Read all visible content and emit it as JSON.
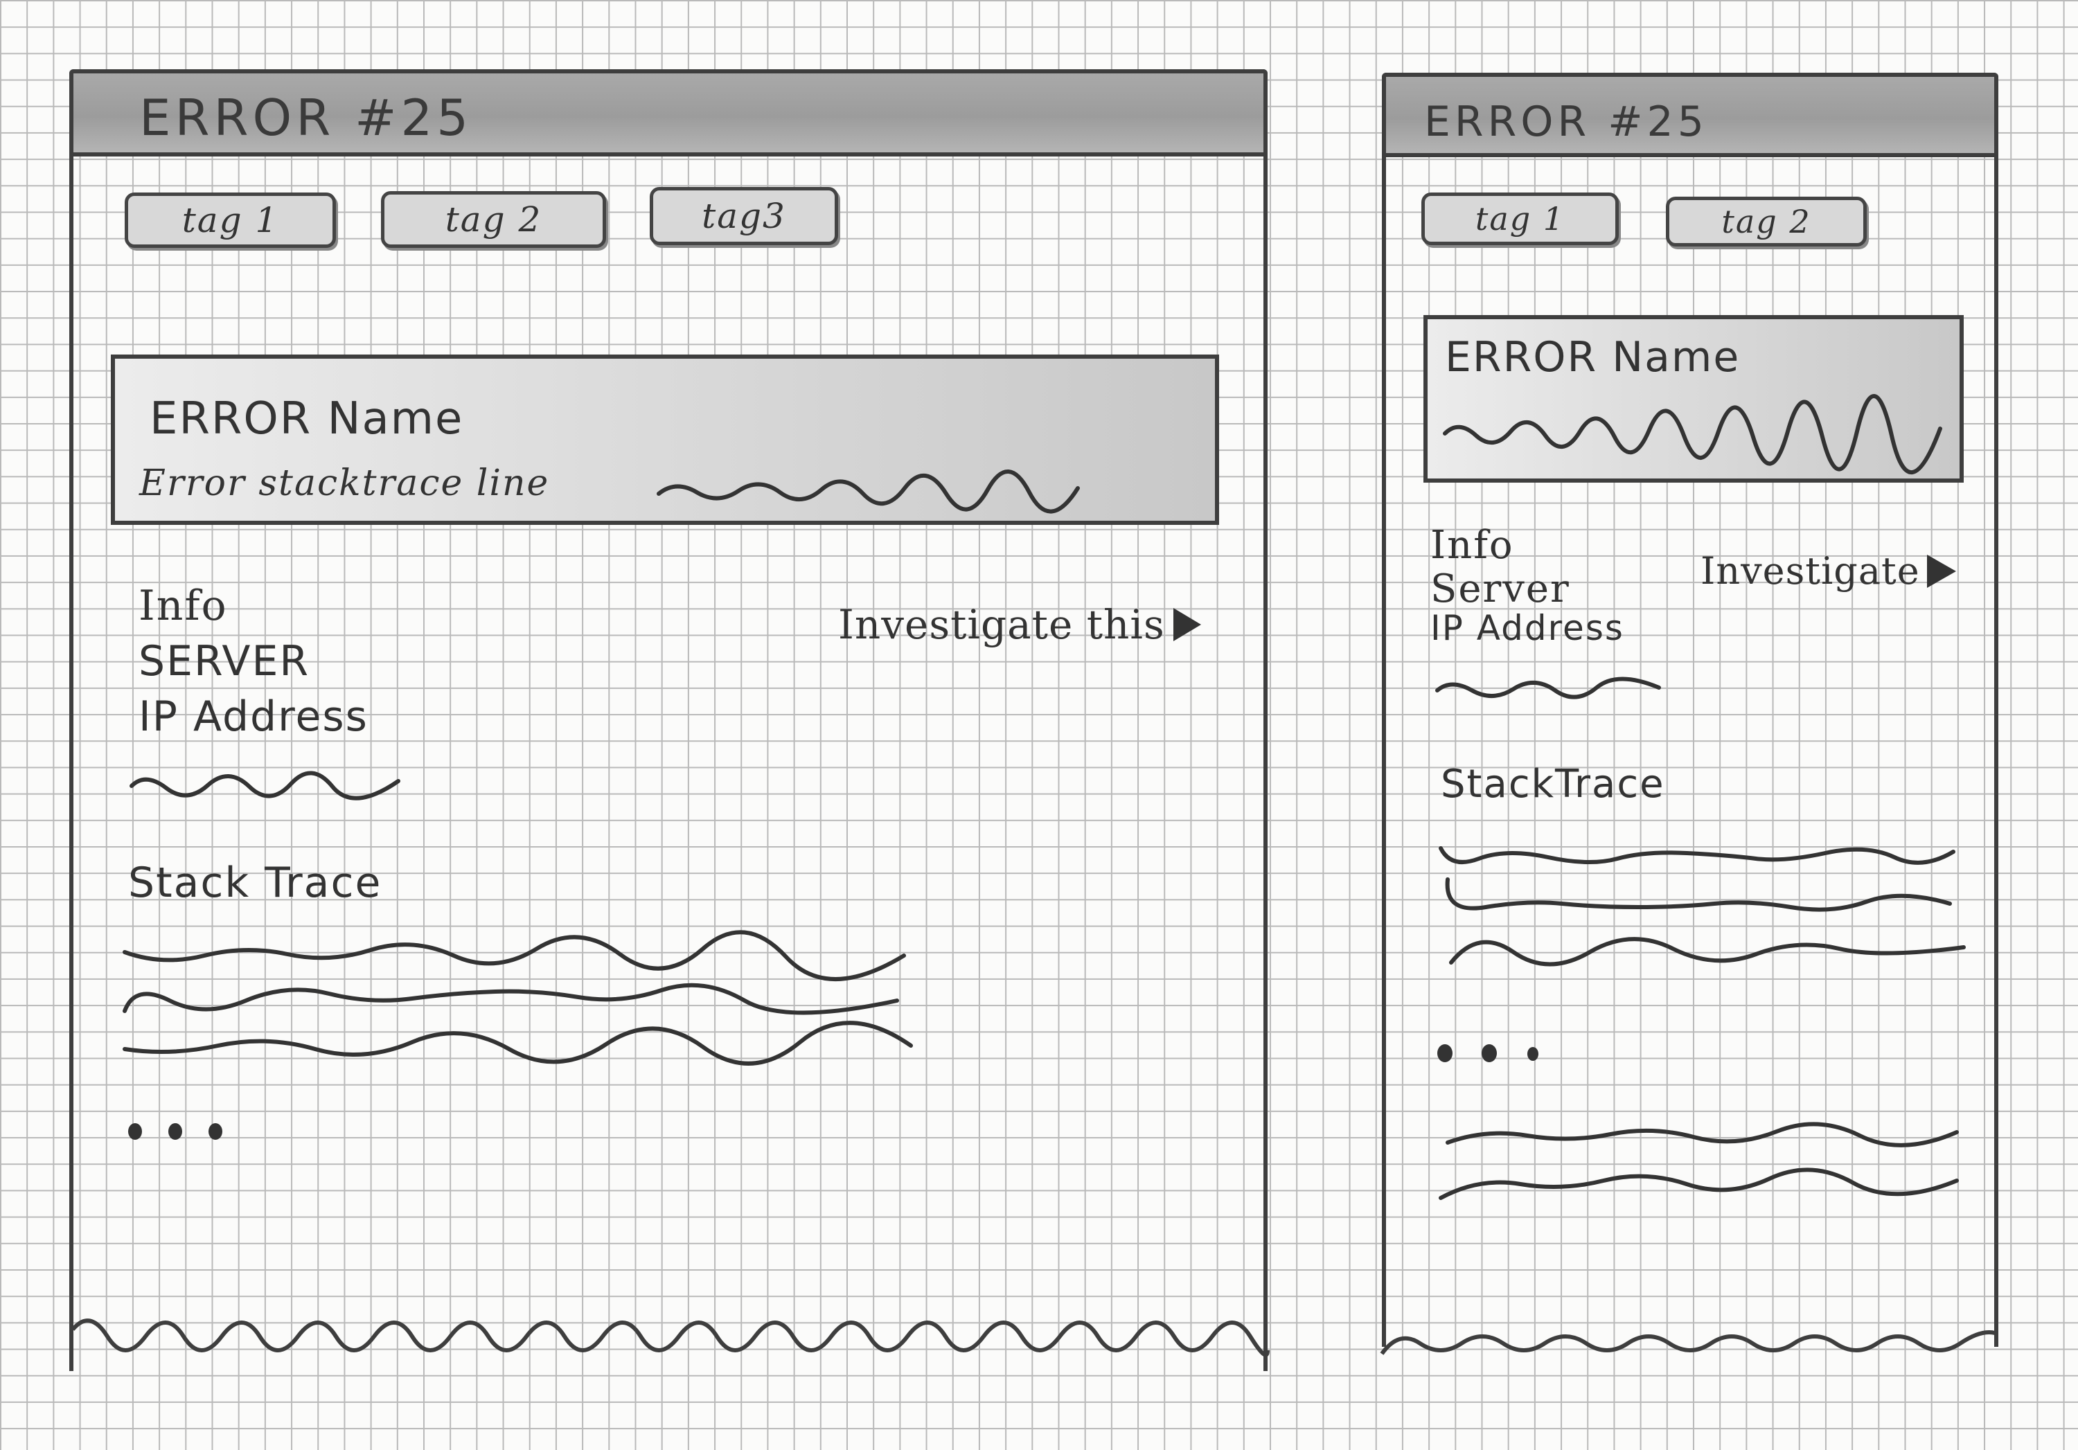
{
  "desktop": {
    "title": "ERROR #25",
    "tags": [
      "tag 1",
      "tag 2",
      "tag3"
    ],
    "error_box": {
      "name": "ERROR Name",
      "stacktrace_line": "Error stacktrace line"
    },
    "info": {
      "heading": "Info",
      "server": "SERVER",
      "ip": "IP Address"
    },
    "investigate_label": "Investigate this",
    "stack_trace_heading": "Stack Trace",
    "icons": {
      "investigate": "play-icon",
      "more": "ellipsis-icon"
    }
  },
  "mobile": {
    "title": "ERROR #25",
    "tags": [
      "tag 1",
      "tag 2"
    ],
    "error_box": {
      "name": "ERROR Name"
    },
    "info": {
      "heading": "Info",
      "server": "Server",
      "ip": "IP Address"
    },
    "investigate_label": "Investigate",
    "stack_trace_heading": "StackTrace",
    "icons": {
      "investigate": "play-icon",
      "more": "ellipsis-icon"
    }
  }
}
